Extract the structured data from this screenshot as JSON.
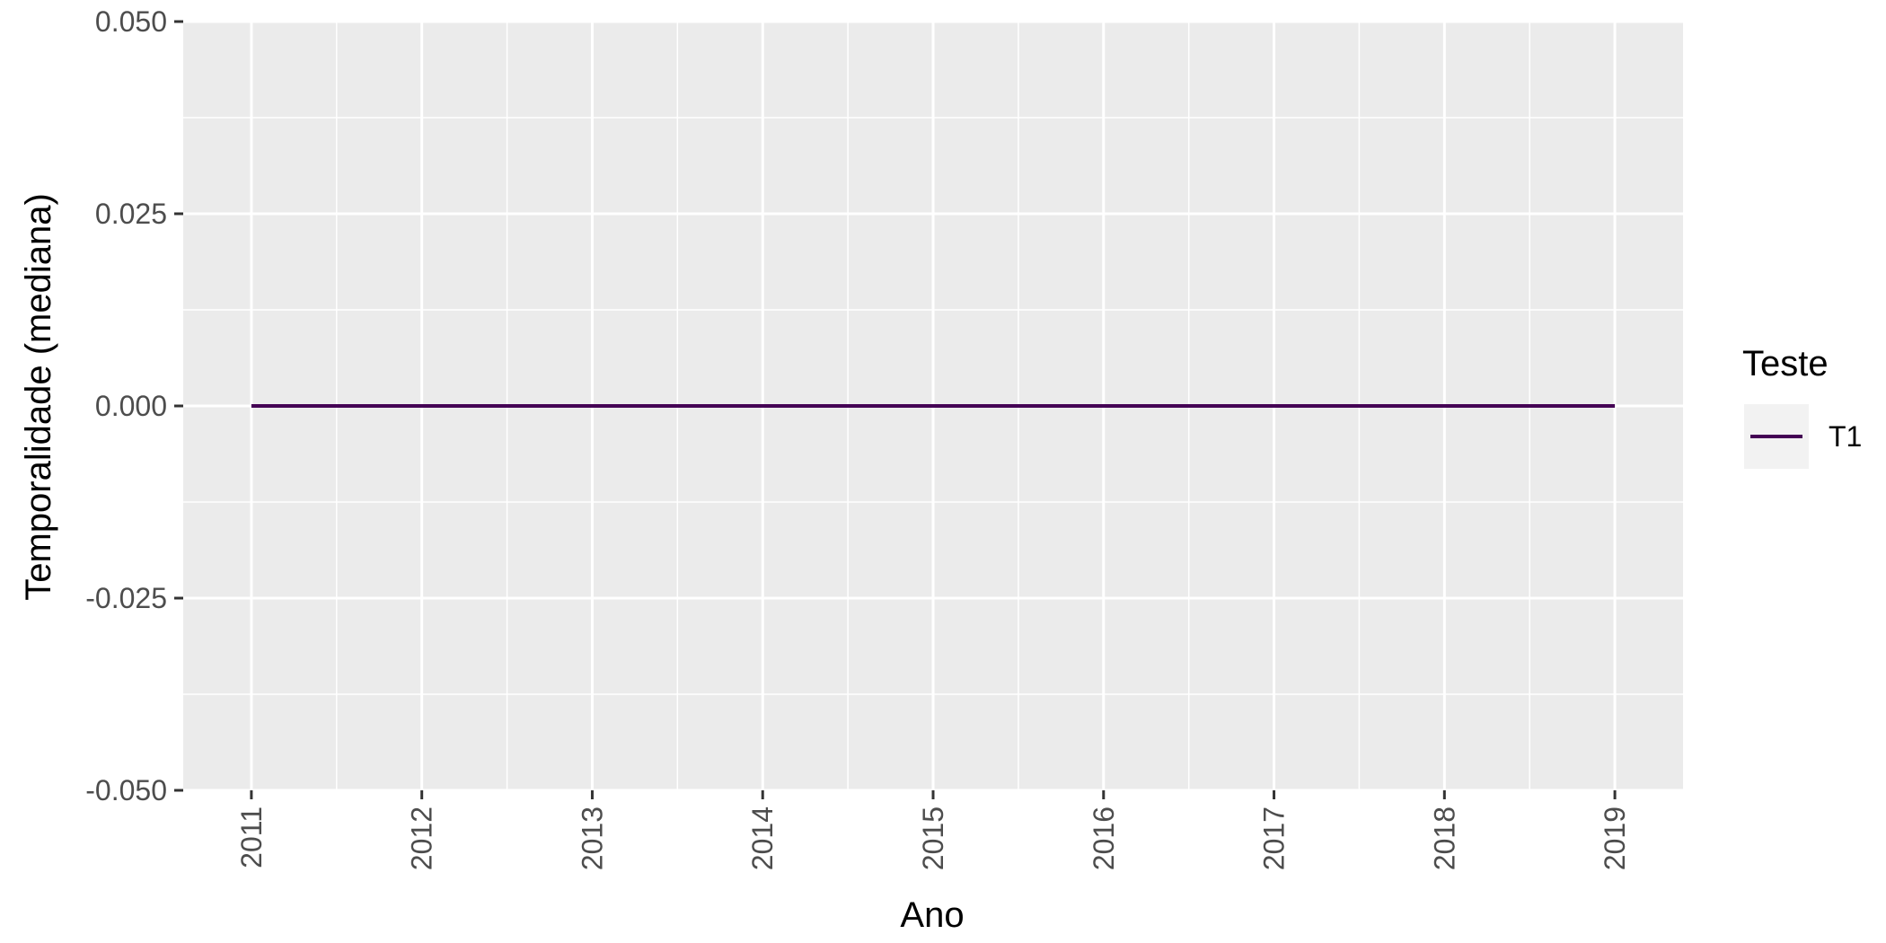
{
  "chart_data": {
    "type": "line",
    "title": "",
    "xlabel": "Ano",
    "ylabel": "Temporalidade (mediana)",
    "x": [
      2011,
      2012,
      2013,
      2014,
      2015,
      2016,
      2017,
      2018,
      2019
    ],
    "x_tick_labels": [
      "2011",
      "2012",
      "2013",
      "2014",
      "2015",
      "2016",
      "2017",
      "2018",
      "2019"
    ],
    "y_ticks": [
      -0.05,
      -0.025,
      0,
      0.025,
      0.05
    ],
    "y_tick_labels": [
      "-0.050",
      "-0.025",
      "0.000",
      "0.025",
      "0.050"
    ],
    "ylim": [
      -0.05,
      0.05
    ],
    "xlim": [
      2010.6,
      2019.4
    ],
    "grid": true,
    "legend": {
      "title": "Teste",
      "placement": "right"
    },
    "series": [
      {
        "name": "T1",
        "color": "#440154",
        "values": [
          0,
          0,
          0,
          0,
          0,
          0,
          0,
          0,
          0
        ]
      }
    ]
  },
  "colors": {
    "panel_background": "#EBEBEB",
    "grid_line": "#FFFFFF",
    "tick_text": "#4D4D4D",
    "tick_mark": "#333333",
    "legend_key_background": "#F2F2F2"
  }
}
